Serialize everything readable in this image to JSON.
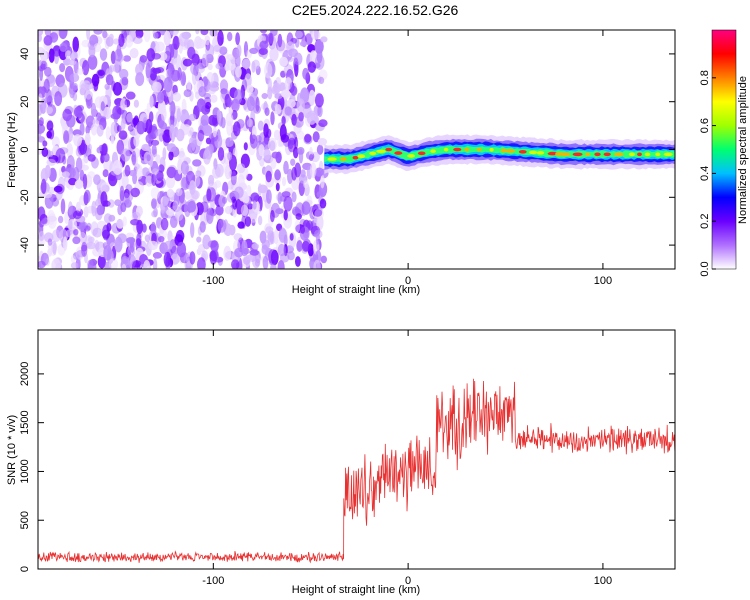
{
  "title": "C2E5.2024.222.16.52.G26",
  "chart_data": [
    {
      "type": "heatmap",
      "xlabel": "Height of straight line (km)",
      "ylabel": "Frequency (Hz)",
      "xlim": [
        -190,
        137
      ],
      "ylim": [
        -50,
        50
      ],
      "x_ticks": [
        -100,
        0,
        100
      ],
      "y_ticks": [
        -40,
        -20,
        0,
        20,
        40
      ],
      "noise_region_x": [
        -190,
        -43
      ],
      "signal_start_x": -43,
      "signal_path": [
        {
          "x": -43,
          "y": -4
        },
        {
          "x": -30,
          "y": -4
        },
        {
          "x": -20,
          "y": -2
        },
        {
          "x": -10,
          "y": 0
        },
        {
          "x": 0,
          "y": -3
        },
        {
          "x": 10,
          "y": -1
        },
        {
          "x": 20,
          "y": 0
        },
        {
          "x": 40,
          "y": 0
        },
        {
          "x": 60,
          "y": -1
        },
        {
          "x": 80,
          "y": -2
        },
        {
          "x": 100,
          "y": -2
        },
        {
          "x": 120,
          "y": -2
        },
        {
          "x": 137,
          "y": -2
        }
      ],
      "colorbar": {
        "label": "Normalized spectral amplitude",
        "range": [
          0,
          1
        ],
        "ticks": [
          "0.0",
          "0.2",
          "0.4",
          "0.6",
          "0.8"
        ],
        "colors": [
          "#ffffff",
          "#b070ff",
          "#6a00ff",
          "#0000ff",
          "#00c0ff",
          "#00ff70",
          "#a0ff00",
          "#ffff00",
          "#ff8000",
          "#ff0000",
          "#ff0080"
        ]
      }
    },
    {
      "type": "line",
      "xlabel": "Height of straight line (km)",
      "ylabel": "SNR (10 * v/v)",
      "xlim": [
        -190,
        137
      ],
      "ylim": [
        0,
        2450
      ],
      "x_ticks": [
        -100,
        0,
        100
      ],
      "y_ticks": [
        0,
        500,
        1000,
        1500,
        2000
      ],
      "line_color": "#e83030",
      "segments": [
        {
          "x_start": -190,
          "x_end": -33,
          "mean": 120,
          "spread": 60
        },
        {
          "x_start": -33,
          "x_end": -15,
          "mean": 750,
          "spread": 450
        },
        {
          "x_start": -15,
          "x_end": 0,
          "mean": 900,
          "spread": 450
        },
        {
          "x_start": 0,
          "x_end": 15,
          "mean": 1050,
          "spread": 400
        },
        {
          "x_start": 15,
          "x_end": 30,
          "mean": 1450,
          "spread": 500
        },
        {
          "x_start": 30,
          "x_end": 55,
          "mean": 1550,
          "spread": 450
        },
        {
          "x_start": 55,
          "x_end": 137,
          "mean": 1320,
          "spread": 160
        }
      ]
    }
  ]
}
